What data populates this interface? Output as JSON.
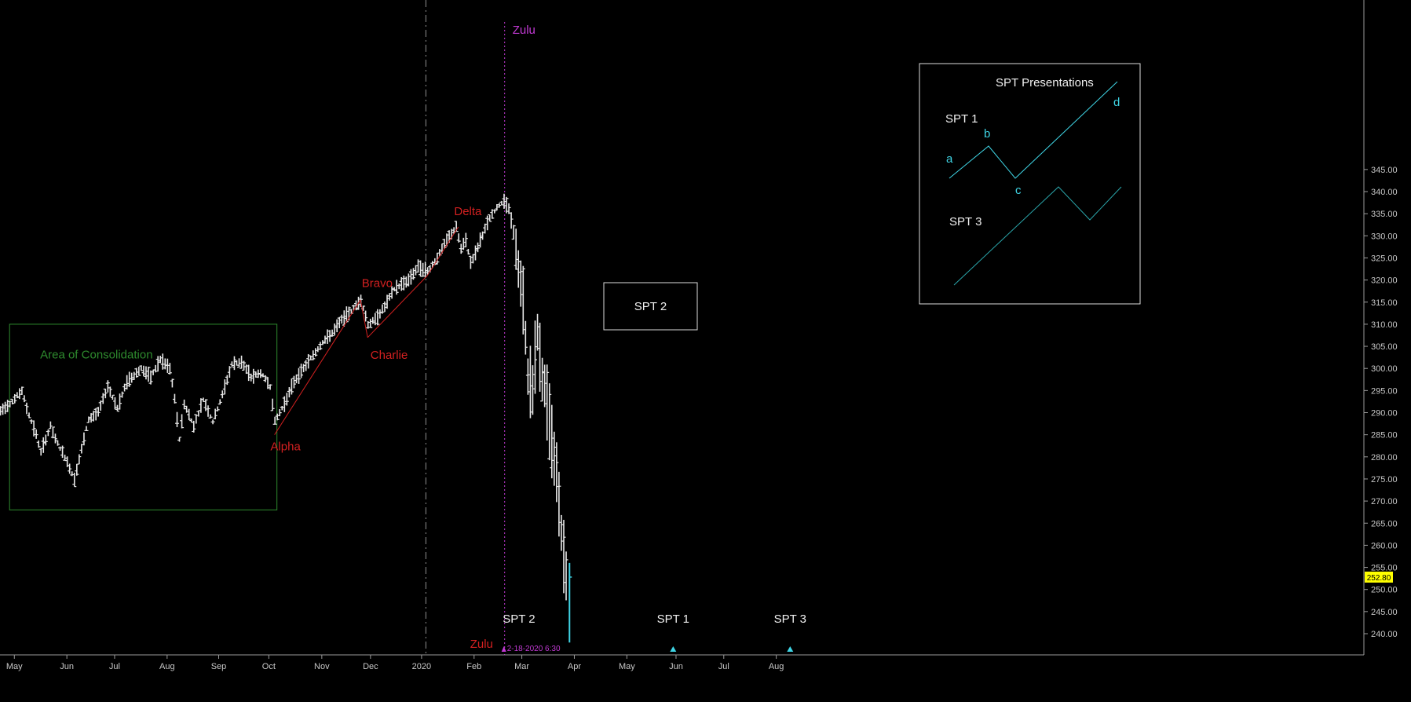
{
  "chart_data": {
    "type": "bar",
    "subtype": "ohlc-price-bars",
    "title": "",
    "xlabel": "",
    "ylabel": "",
    "ylim": [
      236.5,
      347
    ],
    "grid": false,
    "y_ticks": [
      240,
      245,
      250,
      255,
      260,
      265,
      270,
      275,
      280,
      285,
      290,
      295,
      300,
      305,
      310,
      315,
      320,
      325,
      330,
      335,
      340,
      345
    ],
    "x_labels": [
      {
        "t": 3.5,
        "label": "May"
      },
      {
        "t": 14.5,
        "label": "Jun"
      },
      {
        "t": 24.5,
        "label": "Jul"
      },
      {
        "t": 35.5,
        "label": "Aug"
      },
      {
        "t": 46.3,
        "label": "Sep"
      },
      {
        "t": 56.8,
        "label": "Oct"
      },
      {
        "t": 67.9,
        "label": "Nov"
      },
      {
        "t": 78.1,
        "label": "Dec"
      },
      {
        "t": 88.8,
        "label": "2020"
      },
      {
        "t": 99.8,
        "label": "Feb"
      },
      {
        "t": 109.8,
        "label": "Mar"
      },
      {
        "t": 120.8,
        "label": "Apr"
      },
      {
        "t": 131.8,
        "label": "May"
      },
      {
        "t": 142.1,
        "label": "Jun"
      },
      {
        "t": 152.1,
        "label": "Jul"
      },
      {
        "t": 163.1,
        "label": "Aug"
      }
    ],
    "price_path": [
      [
        0,
        290
      ],
      [
        3,
        292.5
      ],
      [
        5,
        295
      ],
      [
        6,
        291
      ],
      [
        8,
        285
      ],
      [
        9,
        281
      ],
      [
        11,
        287
      ],
      [
        12,
        284
      ],
      [
        14,
        280
      ],
      [
        16,
        275
      ],
      [
        18,
        284
      ],
      [
        19,
        288.5
      ],
      [
        21,
        290
      ],
      [
        23,
        296
      ],
      [
        25,
        291
      ],
      [
        27,
        297
      ],
      [
        30,
        300
      ],
      [
        32,
        298
      ],
      [
        34,
        302
      ],
      [
        36,
        300
      ],
      [
        37,
        293
      ],
      [
        38,
        284
      ],
      [
        39,
        292
      ],
      [
        41,
        287
      ],
      [
        43,
        293
      ],
      [
        45,
        288
      ],
      [
        47,
        294
      ],
      [
        49,
        301
      ],
      [
        51,
        301.5
      ],
      [
        53,
        298
      ],
      [
        55,
        299
      ],
      [
        57,
        296
      ],
      [
        58,
        288
      ],
      [
        60,
        292
      ],
      [
        62,
        297
      ],
      [
        64,
        300
      ],
      [
        66,
        303
      ],
      [
        68,
        306
      ],
      [
        70,
        308
      ],
      [
        72,
        311
      ],
      [
        74,
        313
      ],
      [
        76,
        315.5
      ],
      [
        77.5,
        310
      ],
      [
        79,
        311
      ],
      [
        81,
        314
      ],
      [
        83,
        318
      ],
      [
        86,
        320
      ],
      [
        88,
        323
      ],
      [
        90,
        322
      ],
      [
        92,
        325
      ],
      [
        94,
        329
      ],
      [
        96,
        332
      ],
      [
        97,
        327
      ],
      [
        98,
        329
      ],
      [
        99,
        324
      ],
      [
        100,
        326
      ],
      [
        101,
        329
      ],
      [
        103,
        334
      ],
      [
        105,
        337
      ],
      [
        106,
        338
      ],
      [
        107,
        336
      ],
      [
        108,
        331
      ],
      [
        109,
        322
      ],
      [
        110,
        315
      ],
      [
        111,
        298
      ],
      [
        112,
        296
      ],
      [
        113,
        308
      ],
      [
        114,
        298
      ],
      [
        115,
        293
      ],
      [
        116,
        283
      ],
      [
        117,
        277
      ],
      [
        118,
        263
      ],
      [
        119,
        253
      ],
      [
        119.3,
        250
      ],
      [
        119.7,
        252.8
      ]
    ],
    "last_bar": {
      "t": 119.7,
      "high": 256,
      "low": 238,
      "close": 252.8
    },
    "last_price_label": "252.80",
    "colors": {
      "bars": "#e8e8e8",
      "last_bar": "#3fd5e5",
      "alpha_lines": "#d32020",
      "consolidation_box": "#2e8b2e",
      "zulu": "#c23ad4",
      "divider": "#909090",
      "price_tag": "#ffff00",
      "spt1_lines": "#3fd5e5",
      "spt3_lines": "#2aa5aa"
    },
    "wave_lines": [
      {
        "from": [
          58,
          285
        ],
        "to": [
          76,
          315.5
        ]
      },
      {
        "from": [
          76,
          315.5
        ],
        "to": [
          77.5,
          307
        ]
      },
      {
        "from": [
          77.5,
          307
        ],
        "to": [
          90,
          321
        ]
      },
      {
        "from": [
          90,
          321
        ],
        "to": [
          96.5,
          332
        ]
      }
    ],
    "wave_labels": [
      {
        "name": "alpha",
        "t": 60.3,
        "p": 281.5,
        "text": "Alpha"
      },
      {
        "name": "bravo",
        "t": 79.5,
        "p": 318.4,
        "text": "Bravo"
      },
      {
        "name": "charlie",
        "t": 82.0,
        "p": 302.2,
        "text": "Charlie"
      },
      {
        "name": "delta",
        "t": 98.5,
        "p": 334.7,
        "text": "Delta"
      }
    ],
    "consolidation": {
      "t0": 2.5,
      "t1": 58.5,
      "p_top": 310,
      "p_bottom": 268,
      "label": "Area of Consolidation",
      "label_t": 8.9,
      "label_p": 302.3
    },
    "divider_t": 89.7,
    "zulu": {
      "t": 106.2,
      "label_top": "Zulu",
      "label_bottom": "Zulu",
      "date_label": "2-18-2020 6:30"
    },
    "spt2_box": {
      "text": "SPT 2"
    },
    "spt_markers": [
      {
        "name": "spt2-marker",
        "t": 109.2,
        "text": "SPT 2",
        "arrow": false
      },
      {
        "name": "spt1-marker",
        "t": 141.5,
        "text": "SPT 1",
        "arrow": true
      },
      {
        "name": "spt3-marker",
        "t": 166.0,
        "text": "SPT 3",
        "arrow": true
      }
    ],
    "inset": {
      "title": "SPT Presentations",
      "spt1_label": "SPT 1",
      "spt3_label": "SPT 3",
      "points": {
        "a": "a",
        "b": "b",
        "c": "c",
        "d": "d"
      }
    }
  }
}
